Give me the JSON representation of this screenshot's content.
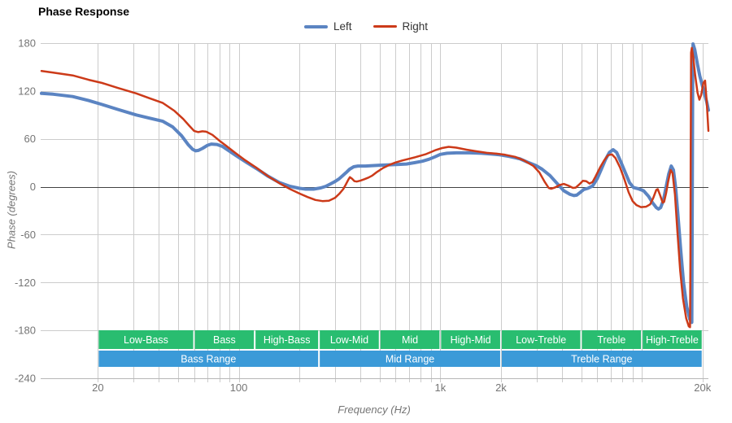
{
  "title": "Phase Response",
  "legend": {
    "items": [
      {
        "label": "Left",
        "color": "#5b84c2"
      },
      {
        "label": "Right",
        "color": "#cc3a19"
      }
    ]
  },
  "axes": {
    "x": {
      "label": "Frequency (Hz)"
    },
    "y": {
      "label": "Phase (degrees)"
    }
  },
  "colors": {
    "grid": "#cccccc",
    "zero_line": "#424242",
    "axis_line": "#b7b7b7",
    "tick_label": "#757575",
    "band_green": "#29bd70",
    "band_blue": "#3b9ad8",
    "band_text": "#ffffff"
  },
  "chart_data": {
    "type": "line",
    "title": "Phase Response",
    "xlabel": "Frequency (Hz)",
    "ylabel": "Phase (degrees)",
    "x_scale": "log",
    "xlim": [
      10.4,
      21400
    ],
    "ylim": [
      -240,
      180
    ],
    "grid": true,
    "legend_position": "top-center",
    "y_ticks": [
      180,
      120,
      60,
      0,
      -60,
      -120,
      -180,
      -240
    ],
    "y_zero_line": 0,
    "x_tick_labels": [
      {
        "f": 20,
        "text": "20"
      },
      {
        "f": 100,
        "text": "100"
      },
      {
        "f": 1000,
        "text": "1k"
      },
      {
        "f": 2000,
        "text": "2k"
      },
      {
        "f": 20000,
        "text": "20k"
      }
    ],
    "x_gridlines": [
      20,
      30,
      40,
      50,
      60,
      70,
      80,
      90,
      100,
      200,
      300,
      400,
      500,
      600,
      700,
      800,
      900,
      1000,
      2000,
      3000,
      4000,
      5000,
      6000,
      7000,
      8000,
      9000,
      10000,
      20000
    ],
    "bands": {
      "sub_bands": [
        {
          "label": "Low-Bass",
          "f1": 20,
          "f2": 60
        },
        {
          "label": "Bass",
          "f1": 60,
          "f2": 120
        },
        {
          "label": "High-Bass",
          "f1": 120,
          "f2": 250
        },
        {
          "label": "Low-Mid",
          "f1": 250,
          "f2": 500
        },
        {
          "label": "Mid",
          "f1": 500,
          "f2": 1000
        },
        {
          "label": "High-Mid",
          "f1": 1000,
          "f2": 2000
        },
        {
          "label": "Low-Treble",
          "f1": 2000,
          "f2": 5000
        },
        {
          "label": "Treble",
          "f1": 5000,
          "f2": 10000
        },
        {
          "label": "High-Treble",
          "f1": 10000,
          "f2": 20000
        }
      ],
      "ranges": [
        {
          "label": "Bass Range",
          "f1": 20,
          "f2": 250
        },
        {
          "label": "Mid Range",
          "f1": 250,
          "f2": 2000
        },
        {
          "label": "Treble Range",
          "f1": 2000,
          "f2": 20000
        }
      ]
    },
    "series": [
      {
        "name": "Left",
        "color": "#5b84c2",
        "line_width": 4,
        "points": [
          [
            10.5,
            117
          ],
          [
            12,
            116
          ],
          [
            15,
            113
          ],
          [
            18,
            108
          ],
          [
            21,
            103
          ],
          [
            25,
            97
          ],
          [
            31,
            90
          ],
          [
            36,
            86
          ],
          [
            42,
            82
          ],
          [
            47,
            75
          ],
          [
            52,
            64
          ],
          [
            56,
            53
          ],
          [
            59,
            47
          ],
          [
            61,
            45
          ],
          [
            63,
            45.5
          ],
          [
            66,
            48
          ],
          [
            70,
            52
          ],
          [
            73,
            53.5
          ],
          [
            78,
            53
          ],
          [
            83,
            50.5
          ],
          [
            90,
            44.5
          ],
          [
            97,
            39
          ],
          [
            110,
            30
          ],
          [
            122,
            23
          ],
          [
            140,
            13
          ],
          [
            160,
            5
          ],
          [
            180,
            0.5
          ],
          [
            200,
            -2
          ],
          [
            215,
            -3
          ],
          [
            235,
            -3
          ],
          [
            255,
            -1.5
          ],
          [
            270,
            0.5
          ],
          [
            285,
            3.5
          ],
          [
            300,
            6.5
          ],
          [
            315,
            10
          ],
          [
            325,
            13
          ],
          [
            340,
            17.5
          ],
          [
            355,
            22
          ],
          [
            372,
            25
          ],
          [
            390,
            26
          ],
          [
            425,
            26
          ],
          [
            460,
            26.5
          ],
          [
            500,
            27
          ],
          [
            560,
            27.5
          ],
          [
            620,
            28
          ],
          [
            680,
            28.5
          ],
          [
            740,
            30
          ],
          [
            815,
            32
          ],
          [
            880,
            34.5
          ],
          [
            940,
            37.5
          ],
          [
            1000,
            40.5
          ],
          [
            1080,
            42
          ],
          [
            1200,
            42.5
          ],
          [
            1400,
            42.5
          ],
          [
            1600,
            42
          ],
          [
            1800,
            41
          ],
          [
            1970,
            40
          ],
          [
            2200,
            38
          ],
          [
            2480,
            35
          ],
          [
            2700,
            31
          ],
          [
            2990,
            26.5
          ],
          [
            3200,
            22
          ],
          [
            3500,
            14
          ],
          [
            3800,
            4
          ],
          [
            4100,
            -5
          ],
          [
            4400,
            -9.5
          ],
          [
            4600,
            -11
          ],
          [
            4750,
            -10.5
          ],
          [
            4950,
            -7
          ],
          [
            5150,
            -3.5
          ],
          [
            5400,
            -2
          ],
          [
            5700,
            1
          ],
          [
            6000,
            10
          ],
          [
            6300,
            22
          ],
          [
            6600,
            34
          ],
          [
            6900,
            43
          ],
          [
            7200,
            46.5
          ],
          [
            7500,
            43
          ],
          [
            7900,
            30
          ],
          [
            8300,
            17
          ],
          [
            8700,
            5
          ],
          [
            9100,
            -1
          ],
          [
            9600,
            -2.5
          ],
          [
            10200,
            -5
          ],
          [
            10800,
            -12
          ],
          [
            11300,
            -20
          ],
          [
            11800,
            -26
          ],
          [
            12100,
            -28
          ],
          [
            12400,
            -26
          ],
          [
            12800,
            -17
          ],
          [
            13200,
            0
          ],
          [
            13600,
            16
          ],
          [
            14000,
            26
          ],
          [
            14350,
            21
          ],
          [
            14700,
            0
          ],
          [
            15100,
            -35
          ],
          [
            15600,
            -80
          ],
          [
            16100,
            -120
          ],
          [
            16700,
            -150
          ],
          [
            17300,
            -166
          ],
          [
            17700,
            -170
          ],
          [
            17760,
            -90
          ],
          [
            17820,
            30
          ],
          [
            17880,
            140
          ],
          [
            17960,
            179
          ],
          [
            18300,
            172
          ],
          [
            18900,
            153
          ],
          [
            19400,
            139
          ],
          [
            19900,
            128
          ],
          [
            20400,
            118
          ],
          [
            21000,
            106
          ],
          [
            21400,
            96
          ]
        ]
      },
      {
        "name": "Right",
        "color": "#cc3a19",
        "line_width": 2.5,
        "points": [
          [
            10.5,
            145
          ],
          [
            12,
            143
          ],
          [
            15,
            139.5
          ],
          [
            18,
            134
          ],
          [
            21,
            130
          ],
          [
            25,
            124
          ],
          [
            31,
            117
          ],
          [
            36,
            111
          ],
          [
            42,
            105
          ],
          [
            48,
            95
          ],
          [
            53,
            85
          ],
          [
            57,
            76
          ],
          [
            60,
            70
          ],
          [
            63,
            68.5
          ],
          [
            66,
            69.5
          ],
          [
            69,
            69
          ],
          [
            74,
            65
          ],
          [
            80,
            58
          ],
          [
            86,
            52
          ],
          [
            96,
            42.5
          ],
          [
            108,
            33
          ],
          [
            122,
            24
          ],
          [
            140,
            13
          ],
          [
            160,
            4
          ],
          [
            180,
            -3
          ],
          [
            200,
            -8.5
          ],
          [
            220,
            -13
          ],
          [
            240,
            -16.5
          ],
          [
            260,
            -18
          ],
          [
            280,
            -17.5
          ],
          [
            300,
            -14
          ],
          [
            315,
            -9
          ],
          [
            330,
            -3
          ],
          [
            340,
            3
          ],
          [
            350,
            9
          ],
          [
            356,
            12
          ],
          [
            365,
            10
          ],
          [
            375,
            7
          ],
          [
            385,
            6.5
          ],
          [
            400,
            7.5
          ],
          [
            420,
            9.5
          ],
          [
            440,
            11.5
          ],
          [
            460,
            14
          ],
          [
            485,
            18.5
          ],
          [
            520,
            23.5
          ],
          [
            560,
            27.5
          ],
          [
            600,
            30.5
          ],
          [
            650,
            33
          ],
          [
            700,
            35
          ],
          [
            750,
            37
          ],
          [
            800,
            39
          ],
          [
            850,
            41
          ],
          [
            900,
            43.5
          ],
          [
            950,
            46
          ],
          [
            1020,
            48.5
          ],
          [
            1100,
            50
          ],
          [
            1200,
            49
          ],
          [
            1350,
            46.5
          ],
          [
            1500,
            44.5
          ],
          [
            1700,
            42.5
          ],
          [
            1900,
            41.5
          ],
          [
            2100,
            40
          ],
          [
            2350,
            37.5
          ],
          [
            2600,
            33
          ],
          [
            2900,
            26
          ],
          [
            3100,
            18
          ],
          [
            3300,
            6
          ],
          [
            3450,
            -1.5
          ],
          [
            3550,
            -2.5
          ],
          [
            3700,
            -1
          ],
          [
            3900,
            2
          ],
          [
            4100,
            3.5
          ],
          [
            4350,
            1
          ],
          [
            4550,
            -1.5
          ],
          [
            4700,
            -1
          ],
          [
            4900,
            3
          ],
          [
            5100,
            7.5
          ],
          [
            5300,
            7
          ],
          [
            5500,
            4
          ],
          [
            5700,
            6
          ],
          [
            5900,
            13
          ],
          [
            6200,
            24
          ],
          [
            6500,
            33
          ],
          [
            6800,
            39.5
          ],
          [
            7100,
            40.5
          ],
          [
            7400,
            36
          ],
          [
            7800,
            24
          ],
          [
            8200,
            9
          ],
          [
            8600,
            -7
          ],
          [
            9000,
            -18
          ],
          [
            9400,
            -23
          ],
          [
            9900,
            -25.5
          ],
          [
            10500,
            -25
          ],
          [
            11000,
            -22
          ],
          [
            11400,
            -14
          ],
          [
            11800,
            -4
          ],
          [
            12000,
            -3
          ],
          [
            12300,
            -10
          ],
          [
            12700,
            -20
          ],
          [
            12900,
            -19
          ],
          [
            13200,
            -8
          ],
          [
            13500,
            6
          ],
          [
            13900,
            21
          ],
          [
            14200,
            17
          ],
          [
            14600,
            -10
          ],
          [
            15000,
            -55
          ],
          [
            15500,
            -105
          ],
          [
            16000,
            -140
          ],
          [
            16600,
            -165
          ],
          [
            17100,
            -175
          ],
          [
            17350,
            -176
          ],
          [
            17420,
            -90
          ],
          [
            17480,
            30
          ],
          [
            17560,
            168
          ],
          [
            17700,
            174
          ],
          [
            18000,
            162
          ],
          [
            18400,
            140
          ],
          [
            18900,
            118
          ],
          [
            19300,
            109
          ],
          [
            19700,
            115
          ],
          [
            20200,
            130
          ],
          [
            20600,
            133
          ],
          [
            21000,
            105
          ],
          [
            21400,
            70
          ]
        ]
      }
    ]
  }
}
